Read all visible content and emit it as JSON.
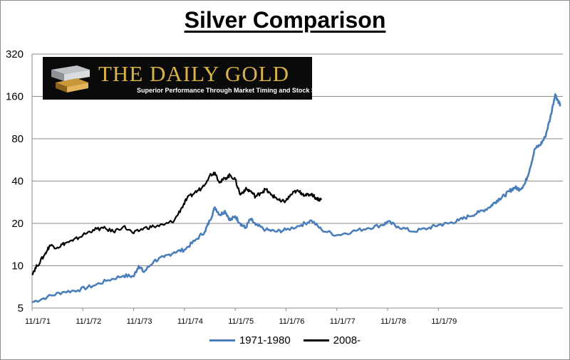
{
  "chart_data": {
    "type": "line",
    "title": "Silver Comparison",
    "xlabel": "",
    "ylabel": "",
    "y_scale": "log2",
    "ylim": [
      5,
      320
    ],
    "y_ticks": [
      5,
      10,
      20,
      40,
      80,
      160,
      320
    ],
    "x_ticks": [
      "11/1/71",
      "11/1/72",
      "11/1/73",
      "11/1/74",
      "11/1/75",
      "11/1/76",
      "11/1/77",
      "11/1/78",
      "11/1/79"
    ],
    "x_range_years": [
      0,
      9.1
    ],
    "grid": true,
    "legend_position": "bottom",
    "series": [
      {
        "name": "1971-1980",
        "color": "#4a7ebb",
        "points": [
          [
            0.0,
            5.5
          ],
          [
            0.3,
            6.0
          ],
          [
            0.6,
            6.5
          ],
          [
            0.9,
            6.7
          ],
          [
            1.2,
            7.2
          ],
          [
            1.5,
            7.9
          ],
          [
            1.8,
            8.5
          ],
          [
            2.0,
            8.4
          ],
          [
            2.1,
            10.0
          ],
          [
            2.2,
            9.0
          ],
          [
            2.4,
            10.8
          ],
          [
            2.6,
            11.5
          ],
          [
            2.8,
            12.5
          ],
          [
            3.0,
            13.0
          ],
          [
            3.2,
            15.0
          ],
          [
            3.4,
            17.5
          ],
          [
            3.5,
            21.0
          ],
          [
            3.6,
            26.0
          ],
          [
            3.7,
            23.0
          ],
          [
            3.8,
            24.5
          ],
          [
            3.9,
            21.0
          ],
          [
            4.0,
            22.5
          ],
          [
            4.1,
            20.0
          ],
          [
            4.2,
            18.5
          ],
          [
            4.3,
            21.5
          ],
          [
            4.4,
            19.5
          ],
          [
            4.6,
            18.0
          ],
          [
            4.8,
            17.5
          ],
          [
            5.0,
            18.0
          ],
          [
            5.3,
            19.5
          ],
          [
            5.5,
            21.0
          ],
          [
            5.7,
            18.0
          ],
          [
            6.0,
            16.5
          ],
          [
            6.3,
            17.5
          ],
          [
            6.6,
            18.5
          ],
          [
            6.9,
            19.5
          ],
          [
            7.0,
            20.5
          ],
          [
            7.2,
            19.0
          ],
          [
            7.5,
            17.5
          ],
          [
            7.8,
            18.5
          ],
          [
            8.0,
            19.5
          ],
          [
            8.2,
            20.0
          ],
          [
            8.4,
            21.0
          ],
          [
            8.6,
            22.5
          ],
          [
            8.8,
            24.0
          ],
          [
            9.0,
            26.0
          ],
          [
            9.1,
            28.0
          ],
          [
            9.2,
            30.0
          ],
          [
            9.3,
            31.5
          ],
          [
            9.4,
            34.0
          ],
          [
            9.5,
            36.0
          ],
          [
            9.6,
            35.0
          ],
          [
            9.7,
            38.0
          ],
          [
            9.8,
            49.0
          ],
          [
            9.9,
            68.0
          ],
          [
            10.0,
            72.0
          ],
          [
            10.1,
            82.0
          ],
          [
            10.2,
            112.0
          ],
          [
            10.3,
            166.0
          ],
          [
            10.35,
            150.0
          ],
          [
            10.4,
            140.0
          ]
        ]
      },
      {
        "name": "2008-",
        "color": "#000000",
        "points": [
          [
            0.0,
            8.8
          ],
          [
            0.1,
            10.0
          ],
          [
            0.25,
            12.0
          ],
          [
            0.35,
            14.0
          ],
          [
            0.5,
            13.5
          ],
          [
            0.65,
            14.5
          ],
          [
            0.8,
            15.0
          ],
          [
            1.0,
            16.5
          ],
          [
            1.2,
            18.0
          ],
          [
            1.4,
            18.5
          ],
          [
            1.6,
            17.5
          ],
          [
            1.8,
            19.0
          ],
          [
            2.0,
            17.0
          ],
          [
            2.2,
            18.5
          ],
          [
            2.4,
            19.0
          ],
          [
            2.6,
            19.5
          ],
          [
            2.8,
            21.0
          ],
          [
            2.95,
            26.0
          ],
          [
            3.05,
            30.0
          ],
          [
            3.2,
            33.0
          ],
          [
            3.35,
            36.0
          ],
          [
            3.5,
            44.0
          ],
          [
            3.6,
            46.0
          ],
          [
            3.7,
            39.0
          ],
          [
            3.8,
            42.0
          ],
          [
            3.9,
            44.0
          ],
          [
            4.0,
            41.0
          ],
          [
            4.1,
            32.0
          ],
          [
            4.2,
            35.0
          ],
          [
            4.3,
            34.0
          ],
          [
            4.4,
            31.0
          ],
          [
            4.5,
            33.0
          ],
          [
            4.6,
            35.0
          ],
          [
            4.7,
            32.0
          ],
          [
            4.8,
            30.5
          ],
          [
            4.9,
            28.5
          ],
          [
            5.0,
            29.0
          ],
          [
            5.1,
            32.0
          ],
          [
            5.2,
            34.0
          ],
          [
            5.3,
            33.0
          ],
          [
            5.4,
            31.5
          ],
          [
            5.5,
            32.5
          ],
          [
            5.6,
            30.0
          ],
          [
            5.7,
            29.5
          ]
        ]
      }
    ]
  },
  "logo": {
    "name": "THE DAILY GOLD",
    "tagline": "Superior Performance Through  Market Timing and Stock Selection"
  }
}
